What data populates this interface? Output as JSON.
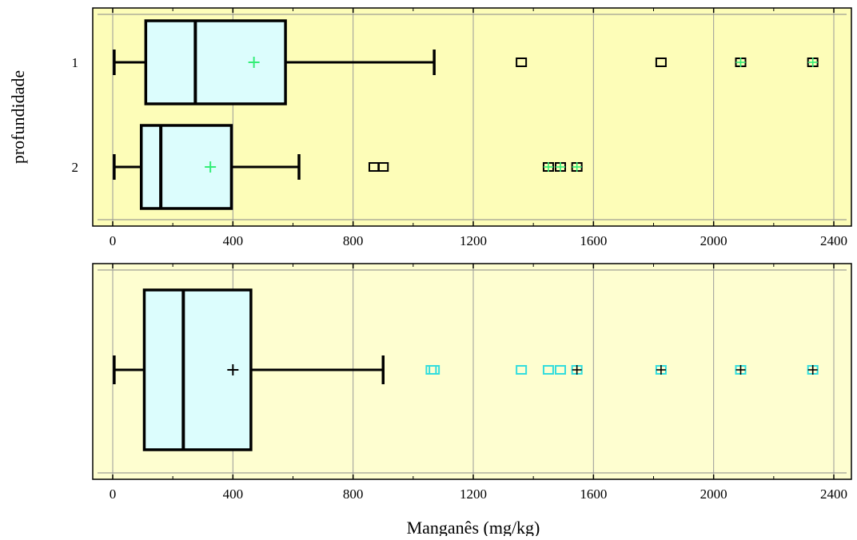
{
  "chart_data": [
    {
      "type": "boxplot",
      "ylabel": "profundidade",
      "xlabel": "",
      "xlim": [
        0,
        2400
      ],
      "xticks": [
        0,
        400,
        800,
        1200,
        1600,
        2000,
        2400
      ],
      "grid": true,
      "background": "#fdfdb8",
      "box_fill": "#dcfdfd",
      "mean_color": "#33ee77",
      "categories": [
        "1",
        "2"
      ],
      "boxes": [
        {
          "name": "1",
          "whisker_low": 5,
          "q1": 110,
          "median": 275,
          "q3": 575,
          "whisker_high": 1070,
          "mean": 470,
          "outliers": [
            1360,
            1825,
            2090,
            2330
          ],
          "mean_marked_outliers": [
            2090,
            2330
          ]
        },
        {
          "name": "2",
          "whisker_low": 5,
          "q1": 95,
          "median": 160,
          "q3": 395,
          "whisker_high": 620,
          "mean": 325,
          "outliers": [
            870,
            900,
            1450,
            1490,
            1545
          ],
          "mean_marked_outliers": [
            1450,
            1490,
            1545
          ]
        }
      ]
    },
    {
      "type": "boxplot",
      "xlabel": "Manganês (mg/kg)",
      "xlim": [
        0,
        2400
      ],
      "xticks": [
        0,
        400,
        800,
        1200,
        1600,
        2000,
        2400
      ],
      "grid": true,
      "background": "#fefed0",
      "box_fill": "#dcfdfd",
      "mean_color": "#000000",
      "outlier_color": "#33dddd",
      "boxes": [
        {
          "name": "",
          "whisker_low": 5,
          "q1": 105,
          "median": 235,
          "q3": 460,
          "whisker_high": 900,
          "mean": 400,
          "outliers": [
            1060,
            1070,
            1360,
            1450,
            1490,
            1545,
            1825,
            2090,
            2330
          ],
          "mean_marked_outliers": [
            1545,
            1825,
            2090,
            2330
          ]
        }
      ]
    }
  ]
}
